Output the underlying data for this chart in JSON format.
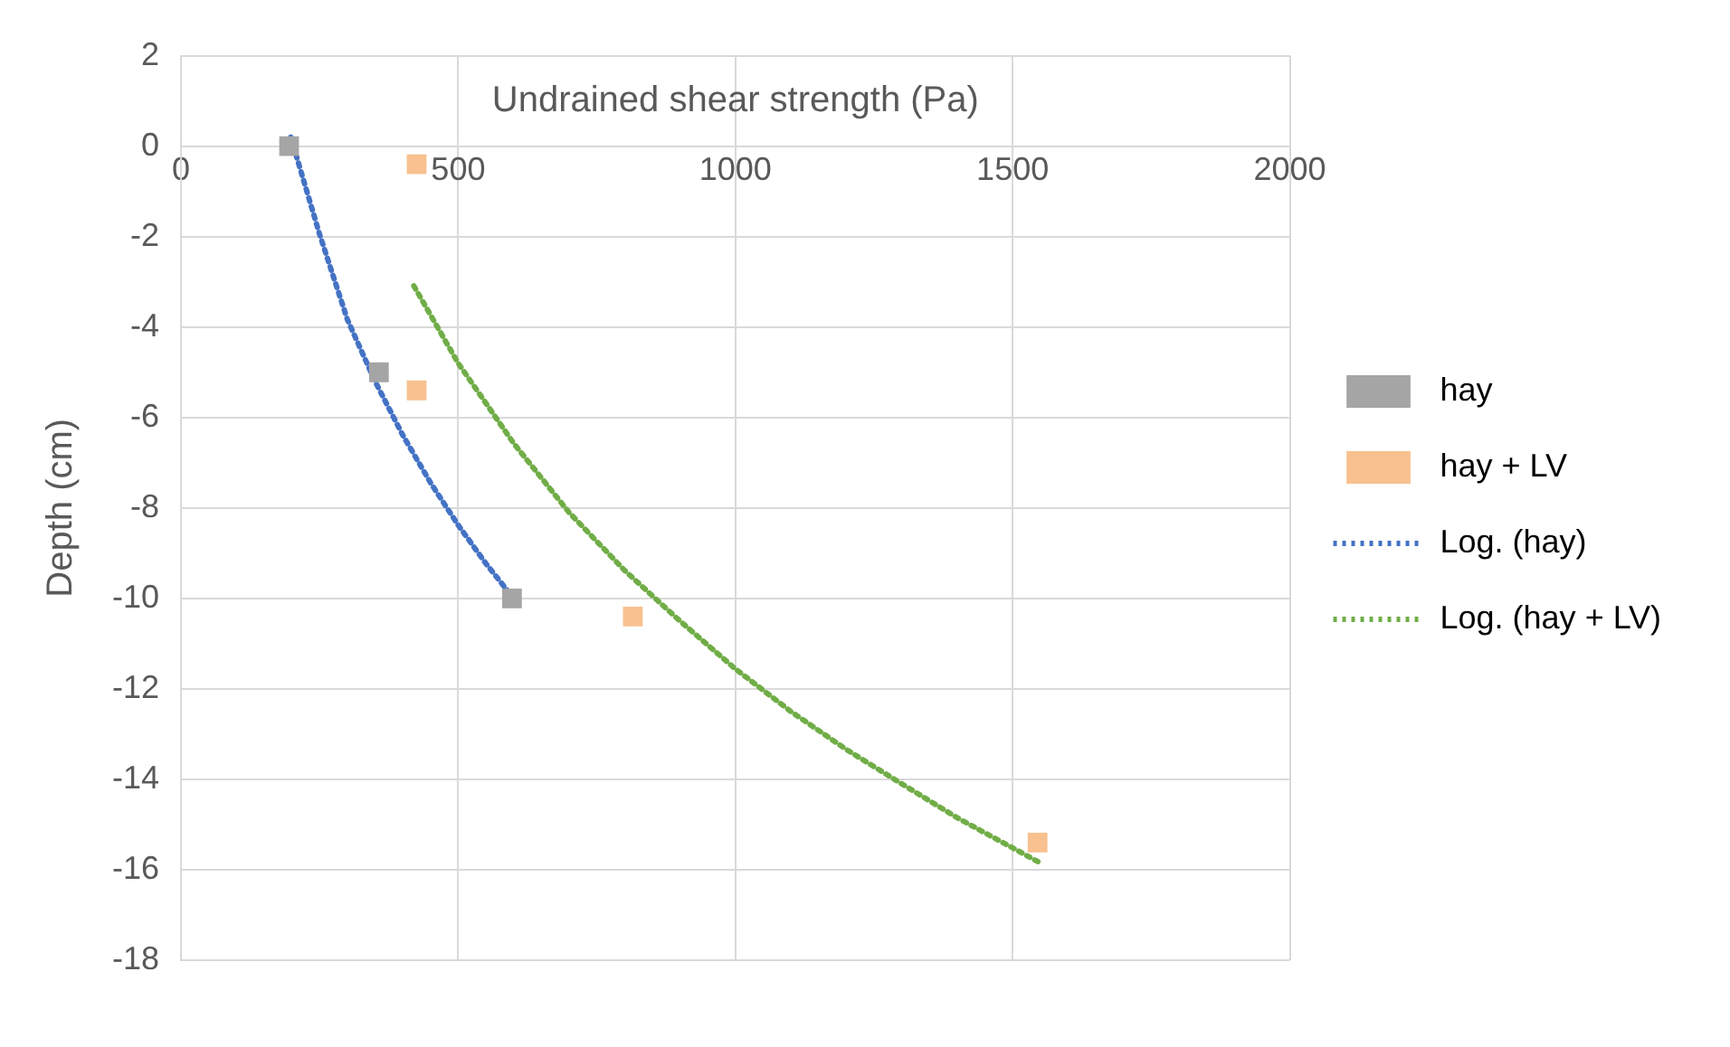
{
  "chart_data": {
    "type": "scatter",
    "xlabel": "Undrained shear strength (Pa)",
    "ylabel": "Depth (cm)",
    "xlim": [
      0,
      2000
    ],
    "xticks": [
      0,
      500,
      1000,
      1500,
      2000
    ],
    "ylim": [
      -18,
      2
    ],
    "yticks": [
      -18,
      -16,
      -14,
      -12,
      -10,
      -8,
      -6,
      -4,
      -2,
      0,
      2
    ],
    "grid": true,
    "legend": "right",
    "series": [
      {
        "name": "hay",
        "type": "scatter",
        "marker": "square",
        "color": "#a5a5a5",
        "x": [
          195,
          357,
          597
        ],
        "values": [
          0,
          -5,
          -10
        ]
      },
      {
        "name": "hay + LV",
        "type": "scatter",
        "marker": "square",
        "color": "#f8c18f",
        "x": [
          425,
          425,
          815,
          1545
        ],
        "values": [
          -0.4,
          -5.4,
          -10.4,
          -15.4
        ]
      },
      {
        "name": "Log. (hay)",
        "type": "line",
        "marker": "none",
        "line_style": "dotted",
        "color": "#4472c4",
        "x": [
          198,
          250,
          300,
          350,
          400,
          450,
          500,
          550,
          600
        ],
        "values": [
          0.2,
          -1.95,
          -3.83,
          -5.2,
          -6.39,
          -7.44,
          -8.38,
          -9.23,
          -10
        ]
      },
      {
        "name": "Log. (hay + LV)",
        "type": "line",
        "marker": "none",
        "line_style": "dotted",
        "color": "#70ad47",
        "x": [
          420,
          500,
          600,
          700,
          800,
          900,
          1000,
          1100,
          1200,
          1300,
          1400,
          1550
        ],
        "values": [
          -3.09,
          -4.8,
          -6.57,
          -8.1,
          -9.38,
          -10.5,
          -11.56,
          -12.5,
          -13.34,
          -14.1,
          -14.85,
          -15.85
        ]
      }
    ]
  }
}
